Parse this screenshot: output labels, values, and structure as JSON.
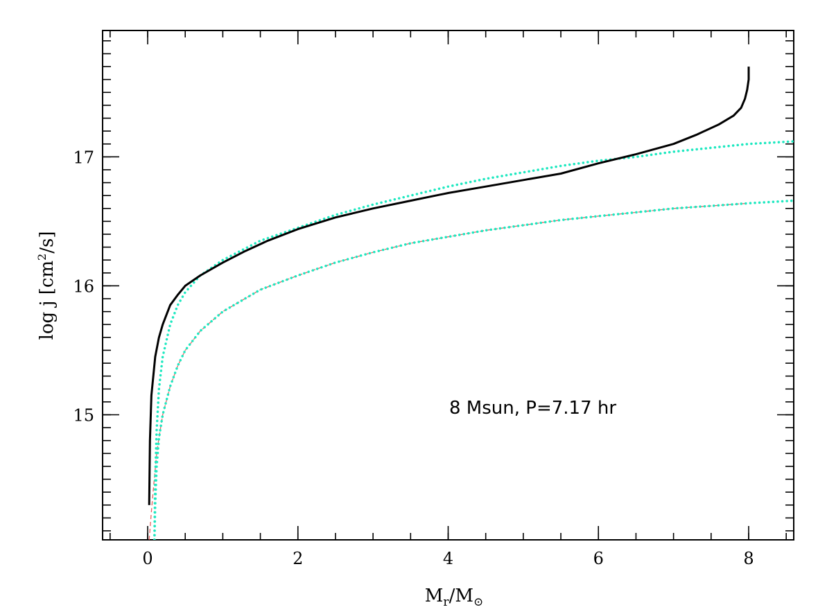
{
  "chart_data": {
    "type": "line",
    "xlabel": "M_r/M_sun",
    "xlabel_main": "M",
    "xlabel_sub1": "r",
    "xlabel_slash": "/M",
    "xlabel_sub2": "⊙",
    "ylabel": "log j [cm²/s]",
    "ylabel_main": "log j [cm",
    "ylabel_sup": "2",
    "ylabel_tail": "/s]",
    "annotation": "8 Msun, P=7.17 hr",
    "xlim": [
      -0.6,
      8.6
    ],
    "ylim": [
      14.03,
      17.98
    ],
    "x_ticks": [
      0,
      2,
      4,
      6,
      8
    ],
    "x_tick_labels": [
      "0",
      "2",
      "4",
      "6",
      "8"
    ],
    "y_ticks": [
      15,
      16,
      17
    ],
    "y_tick_labels": [
      "15",
      "16",
      "17"
    ],
    "grid": false,
    "colors": {
      "solid": "#000000",
      "dotted": "#1de8c0",
      "dashed": "#e86060"
    },
    "series": [
      {
        "style": "solid",
        "x": [
          0.02,
          0.03,
          0.05,
          0.1,
          0.15,
          0.2,
          0.3,
          0.4,
          0.5,
          0.7,
          1.0,
          1.3,
          1.6,
          2.0,
          2.5,
          3.0,
          3.5,
          4.0,
          4.5,
          5.0,
          5.5,
          6.0,
          6.5,
          7.0,
          7.3,
          7.6,
          7.8,
          7.9,
          7.95,
          7.98,
          8.0,
          8.0
        ],
        "y": [
          14.3,
          14.8,
          15.15,
          15.45,
          15.6,
          15.7,
          15.85,
          15.93,
          16.0,
          16.08,
          16.18,
          16.27,
          16.35,
          16.44,
          16.53,
          16.6,
          16.66,
          16.72,
          16.77,
          16.82,
          16.87,
          16.95,
          17.02,
          17.1,
          17.17,
          17.25,
          17.32,
          17.38,
          17.45,
          17.52,
          17.6,
          17.7
        ]
      },
      {
        "style": "dotted",
        "x": [
          0.09,
          0.1,
          0.12,
          0.15,
          0.2,
          0.3,
          0.4,
          0.5,
          0.7,
          1.0,
          1.5,
          2.0,
          2.5,
          3.0,
          3.5,
          4.0,
          4.5,
          5.0,
          5.5,
          6.0,
          6.5,
          7.0,
          7.5,
          8.0,
          8.6
        ],
        "y": [
          14.03,
          14.5,
          14.88,
          15.2,
          15.45,
          15.7,
          15.85,
          15.95,
          16.08,
          16.2,
          16.35,
          16.45,
          16.55,
          16.63,
          16.7,
          16.77,
          16.83,
          16.88,
          16.93,
          16.97,
          17.0,
          17.04,
          17.07,
          17.1,
          17.12
        ]
      },
      {
        "style": "dotted",
        "x": [
          0.09,
          0.1,
          0.12,
          0.15,
          0.2,
          0.3,
          0.4,
          0.5,
          0.7,
          1.0,
          1.5,
          2.0,
          2.5,
          3.0,
          3.5,
          4.0,
          4.5,
          5.0,
          5.5,
          6.0,
          6.5,
          7.0,
          7.5,
          8.0,
          8.6
        ],
        "y": [
          14.03,
          14.3,
          14.6,
          14.82,
          15.0,
          15.22,
          15.38,
          15.5,
          15.65,
          15.8,
          15.97,
          16.08,
          16.18,
          16.26,
          16.33,
          16.38,
          16.43,
          16.47,
          16.51,
          16.54,
          16.57,
          16.6,
          16.62,
          16.64,
          16.66
        ]
      },
      {
        "style": "dashed",
        "x": [
          0.02,
          0.05,
          0.08,
          0.12,
          0.15,
          0.2,
          0.3,
          0.4,
          0.5,
          0.7,
          1.0,
          1.5,
          2.0,
          2.5,
          3.0,
          3.5,
          4.0,
          4.5,
          5.0,
          5.5,
          6.0,
          6.5,
          7.0,
          7.5,
          8.0
        ],
        "y": [
          14.03,
          14.25,
          14.45,
          14.7,
          14.82,
          15.0,
          15.22,
          15.38,
          15.5,
          15.65,
          15.8,
          15.97,
          16.08,
          16.18,
          16.26,
          16.33,
          16.38,
          16.43,
          16.47,
          16.51,
          16.54,
          16.57,
          16.6,
          16.62,
          16.64
        ]
      }
    ]
  }
}
